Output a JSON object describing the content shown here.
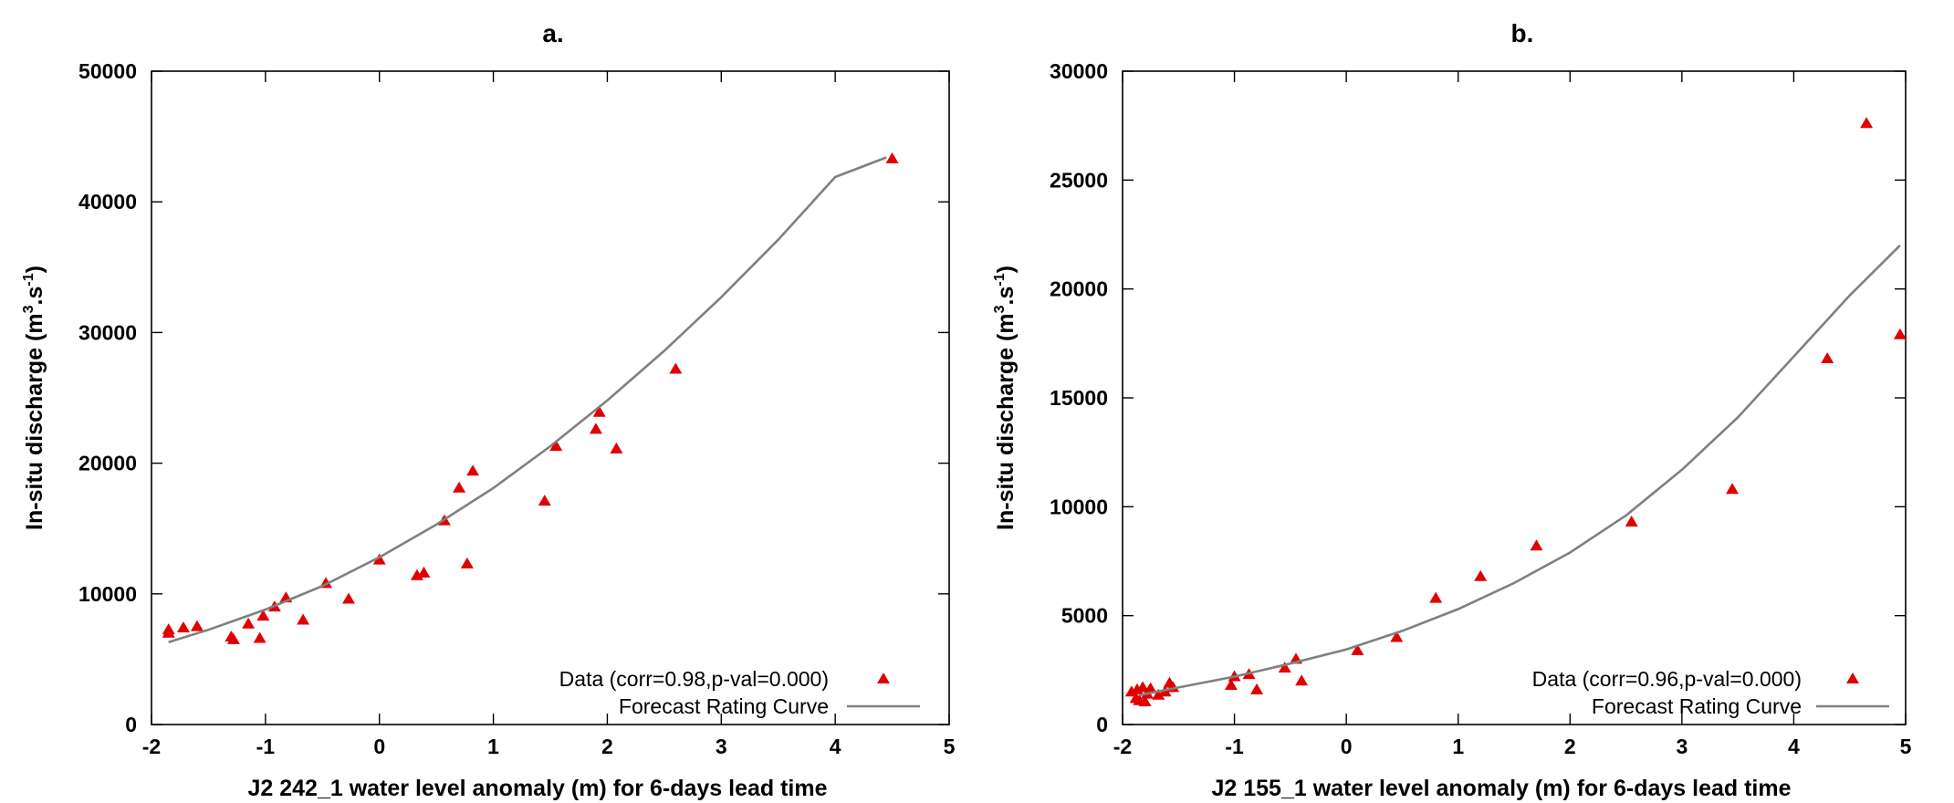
{
  "chart_data": [
    {
      "type": "scatter",
      "title": "a.",
      "xlabel": "J2 242_1 water level anomaly (m) for 6-days lead time",
      "ylabel": "In-situ discharge (m3.s-1)",
      "ylabel_parts": {
        "base": "In-situ discharge (m",
        "sup1": "3",
        "mid": ".s",
        "sup2": "-1",
        "end": ")"
      },
      "xlim": [
        -2,
        5
      ],
      "ylim": [
        0,
        50000
      ],
      "xticks": [
        -2,
        -1,
        0,
        1,
        2,
        3,
        4,
        5
      ],
      "yticks": [
        0,
        10000,
        20000,
        30000,
        40000,
        50000
      ],
      "grid": false,
      "legend_position": "bottom-right",
      "series": [
        {
          "name": "Data (corr=0.98,p-val=0.000)",
          "kind": "points",
          "color": "#e00000",
          "points": [
            [
              -1.85,
              7000
            ],
            [
              -1.85,
              7250
            ],
            [
              -1.72,
              7400
            ],
            [
              -1.6,
              7500
            ],
            [
              -1.3,
              6700
            ],
            [
              -1.28,
              6500
            ],
            [
              -1.15,
              7700
            ],
            [
              -1.05,
              6600
            ],
            [
              -1.02,
              8300
            ],
            [
              -0.92,
              9000
            ],
            [
              -0.82,
              9700
            ],
            [
              -0.67,
              8000
            ],
            [
              -0.47,
              10800
            ],
            [
              -0.27,
              9600
            ],
            [
              0.0,
              12600
            ],
            [
              0.33,
              11400
            ],
            [
              0.39,
              11600
            ],
            [
              0.57,
              15600
            ],
            [
              0.7,
              18100
            ],
            [
              0.77,
              12300
            ],
            [
              0.82,
              19400
            ],
            [
              1.45,
              17100
            ],
            [
              1.55,
              21300
            ],
            [
              1.9,
              22600
            ],
            [
              1.93,
              23900
            ],
            [
              2.08,
              21100
            ],
            [
              2.6,
              27200
            ],
            [
              4.5,
              43300
            ]
          ]
        },
        {
          "name": "Forecast Rating Curve",
          "kind": "curve",
          "color": "#808080",
          "points": [
            [
              -1.85,
              6300
            ],
            [
              -1.5,
              7250
            ],
            [
              -1.0,
              8800
            ],
            [
              -0.5,
              10600
            ],
            [
              0.0,
              12800
            ],
            [
              0.5,
              15300
            ],
            [
              1.0,
              18100
            ],
            [
              1.5,
              21300
            ],
            [
              2.0,
              24800
            ],
            [
              2.5,
              28600
            ],
            [
              3.0,
              32700
            ],
            [
              3.5,
              37100
            ],
            [
              4.0,
              41900
            ],
            [
              4.45,
              43400
            ]
          ]
        }
      ]
    },
    {
      "type": "scatter",
      "title": "b.",
      "xlabel": "J2 155_1 water level anomaly (m) for 6-days lead time",
      "ylabel": "In-situ discharge (m3.s-1)",
      "ylabel_parts": {
        "base": "In-situ discharge (m",
        "sup1": "3",
        "mid": ".s",
        "sup2": "-1",
        "end": ")"
      },
      "xlim": [
        -2,
        5
      ],
      "ylim": [
        0,
        30000
      ],
      "xticks": [
        -2,
        -1,
        0,
        1,
        2,
        3,
        4,
        5
      ],
      "yticks": [
        0,
        5000,
        10000,
        15000,
        20000,
        25000,
        30000
      ],
      "grid": false,
      "legend_position": "bottom-right",
      "series": [
        {
          "name": "Data (corr=0.96,p-val=0.000)",
          "kind": "points",
          "color": "#e00000",
          "points": [
            [
              -1.92,
              1500
            ],
            [
              -1.88,
              1200
            ],
            [
              -1.87,
              1600
            ],
            [
              -1.85,
              1100
            ],
            [
              -1.82,
              1700
            ],
            [
              -1.8,
              1050
            ],
            [
              -1.78,
              1400
            ],
            [
              -1.75,
              1650
            ],
            [
              -1.68,
              1350
            ],
            [
              -1.62,
              1500
            ],
            [
              -1.58,
              1900
            ],
            [
              -1.55,
              1700
            ],
            [
              -1.03,
              1800
            ],
            [
              -1.0,
              2200
            ],
            [
              -0.87,
              2300
            ],
            [
              -0.8,
              1600
            ],
            [
              -0.55,
              2600
            ],
            [
              -0.45,
              3000
            ],
            [
              -0.4,
              2000
            ],
            [
              0.1,
              3400
            ],
            [
              0.45,
              4000
            ],
            [
              0.8,
              5800
            ],
            [
              1.2,
              6800
            ],
            [
              1.7,
              8200
            ],
            [
              2.55,
              9300
            ],
            [
              3.45,
              10800
            ],
            [
              4.3,
              16800
            ],
            [
              4.65,
              27600
            ],
            [
              4.95,
              17900
            ]
          ]
        },
        {
          "name": "Forecast Rating Curve",
          "kind": "curve",
          "color": "#808080",
          "points": [
            [
              -1.85,
              1350
            ],
            [
              -1.5,
              1700
            ],
            [
              -1.0,
              2200
            ],
            [
              -0.5,
              2800
            ],
            [
              0.0,
              3450
            ],
            [
              0.5,
              4300
            ],
            [
              1.0,
              5300
            ],
            [
              1.5,
              6500
            ],
            [
              2.0,
              7900
            ],
            [
              2.5,
              9600
            ],
            [
              3.0,
              11700
            ],
            [
              3.5,
              14100
            ],
            [
              4.0,
              16900
            ],
            [
              4.5,
              19700
            ],
            [
              4.95,
              22000
            ]
          ]
        }
      ]
    }
  ]
}
